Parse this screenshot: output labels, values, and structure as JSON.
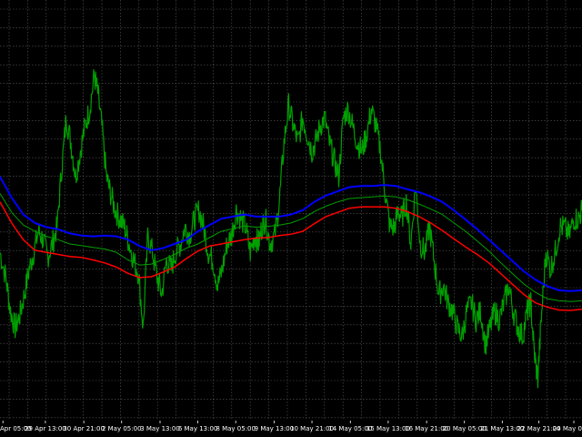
{
  "chart_data": {
    "type": "line",
    "background": "#000000",
    "grid": true,
    "grid_color": "#5a5a5a",
    "grid_style": "dotted",
    "legend": "none",
    "xlim": [
      0,
      100
    ],
    "ylim": [
      0,
      100
    ],
    "x_tick_labels": [
      {
        "x": 0.5,
        "label": "Apr 05:00"
      },
      {
        "x": 7.8,
        "label": "29 Apr 13:00"
      },
      {
        "x": 14.4,
        "label": "30 Apr 21:00"
      },
      {
        "x": 20.9,
        "label": "2 May 05:00"
      },
      {
        "x": 27.5,
        "label": "3 May 13:00"
      },
      {
        "x": 34.0,
        "label": "6 May 13:00"
      },
      {
        "x": 40.5,
        "label": "8 May 05:00"
      },
      {
        "x": 47.1,
        "label": "9 May 13:00"
      },
      {
        "x": 53.6,
        "label": "10 May 21:00"
      },
      {
        "x": 60.2,
        "label": "14 May 05:00"
      },
      {
        "x": 66.7,
        "label": "15 May 13:00"
      },
      {
        "x": 73.3,
        "label": "16 May 21:00"
      },
      {
        "x": 79.8,
        "label": "20 May 05:00"
      },
      {
        "x": 86.3,
        "label": "21 May 13:00"
      },
      {
        "x": 92.6,
        "label": "22 May 21:00"
      },
      {
        "x": 98.6,
        "label": "24 May 0"
      }
    ],
    "series": [
      {
        "color": "#00a000",
        "width": 1.2,
        "noise": true,
        "x": [
          0,
          1,
          1.8,
          2.6,
          3.4,
          4.2,
          5,
          5.8,
          6.6,
          7.4,
          8.2,
          9,
          9.8,
          10.6,
          11.4,
          12.2,
          13,
          13.8,
          14.6,
          15.4,
          16.2,
          16.8,
          17.5,
          18.3,
          19,
          19.8,
          20.6,
          21.4,
          22.2,
          23,
          23.8,
          24.6,
          25.4,
          26.2,
          27,
          27.8,
          28.6,
          29.4,
          30.2,
          31,
          31.8,
          32.6,
          33.4,
          34.2,
          35,
          35.8,
          36.6,
          37.4,
          38.2,
          39,
          39.8,
          40.6,
          41.4,
          42.2,
          43,
          43.8,
          44.4,
          45,
          45.6,
          46.4,
          47.2,
          48,
          48.8,
          49.6,
          50.4,
          51.2,
          52,
          52.8,
          53.6,
          54.2,
          55,
          55.8,
          56.6,
          57.4,
          58.2,
          59,
          59.8,
          60.6,
          61.4,
          62.2,
          63,
          63.8,
          64.6,
          65.4,
          66.2,
          67,
          67.8,
          68.4,
          69,
          69.8,
          70.6,
          71.4,
          72.2,
          73,
          73.8,
          74.6,
          75.4,
          76.2,
          77,
          77.8,
          78.6,
          79.4,
          80.2,
          81,
          81.8,
          82.6,
          83.4,
          84.2,
          85,
          85.8,
          86.6,
          87.4,
          88.2,
          89,
          89.8,
          90.6,
          91.2,
          91.8,
          92.4,
          93,
          93.8,
          94.6,
          95.4,
          96.2,
          97,
          97.8,
          98.6,
          99.4,
          100
        ],
        "y": [
          40,
          34,
          26,
          22,
          25,
          30,
          36,
          40,
          45,
          43,
          39,
          42,
          46,
          60,
          72,
          66,
          58,
          64,
          70,
          74,
          82,
          78,
          70,
          58,
          54,
          50,
          48,
          46,
          42,
          38,
          35,
          22,
          44,
          40,
          34,
          30,
          38,
          36,
          40,
          42,
          46,
          44,
          48,
          50,
          46,
          40,
          38,
          32,
          36,
          42,
          44,
          50,
          48,
          46,
          40,
          44,
          42,
          46,
          48,
          42,
          44,
          52,
          66,
          75,
          70,
          66,
          72,
          68,
          64,
          66,
          70,
          72,
          66,
          62,
          58,
          72,
          74,
          70,
          66,
          64,
          68,
          74,
          70,
          64,
          54,
          46,
          46,
          50,
          48,
          52,
          42,
          56,
          42,
          40,
          46,
          38,
          30,
          32,
          28,
          26,
          22,
          20,
          26,
          28,
          24,
          26,
          18,
          22,
          26,
          24,
          28,
          32,
          26,
          22,
          20,
          26,
          28,
          16,
          10,
          24,
          40,
          36,
          40,
          46,
          46,
          44,
          48,
          48,
          50
        ]
      },
      {
        "color": "#0000ff",
        "width": 2,
        "x": [
          0,
          2,
          4,
          6,
          8,
          10,
          12,
          14,
          16,
          18,
          20,
          22,
          24,
          26,
          28,
          30,
          32,
          34,
          36,
          38,
          40,
          42,
          44,
          46,
          48,
          50,
          52,
          54,
          56,
          58,
          60,
          62,
          64,
          66,
          68,
          70,
          72,
          74,
          76,
          78,
          80,
          82,
          84,
          86,
          88,
          90,
          92,
          94,
          96,
          98,
          100
        ],
        "y": [
          58,
          53,
          49,
          47,
          46,
          45.5,
          44.5,
          44,
          43.8,
          44,
          43.8,
          43,
          41.5,
          40.5,
          41,
          42,
          43,
          45,
          46.5,
          48,
          48.5,
          49,
          48.5,
          48.5,
          48.5,
          49,
          50,
          52,
          53.5,
          54.5,
          55.5,
          55.8,
          55.8,
          56,
          55.8,
          55,
          54.3,
          53.3,
          52,
          50,
          47.8,
          45.5,
          43,
          40.5,
          38,
          35.5,
          33.5,
          32,
          31,
          30.8,
          31
        ]
      },
      {
        "color": "#00a000",
        "width": 1,
        "x": [
          0,
          2,
          4,
          6,
          8,
          10,
          12,
          14,
          16,
          18,
          20,
          22,
          24,
          26,
          28,
          30,
          32,
          34,
          36,
          38,
          40,
          42,
          44,
          46,
          48,
          50,
          52,
          54,
          56,
          58,
          60,
          62,
          64,
          66,
          68,
          70,
          72,
          74,
          76,
          78,
          80,
          82,
          84,
          86,
          88,
          90,
          92,
          94,
          96,
          98,
          100
        ],
        "y": [
          54,
          49.5,
          46.5,
          45,
          43.8,
          43,
          42,
          41.6,
          41.2,
          40.8,
          40,
          38.2,
          37,
          37.2,
          38.3,
          39.5,
          41,
          42,
          43.5,
          45,
          45.6,
          46.3,
          46,
          46.2,
          46.5,
          47,
          48,
          49.7,
          51,
          52,
          52.8,
          53,
          53.2,
          53.4,
          53.2,
          52.5,
          51.5,
          50.3,
          49,
          47,
          45,
          42.7,
          40.3,
          37.6,
          35,
          32.5,
          30.5,
          29,
          28.5,
          28.3,
          28.5
        ]
      },
      {
        "color": "#ff0000",
        "width": 1.5,
        "x": [
          0,
          2,
          4,
          6,
          8,
          10,
          12,
          14,
          16,
          18,
          20,
          22,
          24,
          26,
          28,
          30,
          32,
          34,
          36,
          38,
          40,
          42,
          44,
          46,
          48,
          50,
          52,
          54,
          56,
          58,
          60,
          62,
          64,
          66,
          68,
          70,
          72,
          74,
          76,
          78,
          80,
          82,
          84,
          86,
          88,
          90,
          92,
          94,
          96,
          98,
          100
        ],
        "y": [
          52,
          47,
          43,
          40.5,
          40,
          39.5,
          39,
          38.8,
          38.2,
          37.5,
          36.5,
          35,
          34,
          34.2,
          35.3,
          36.5,
          38.5,
          40.3,
          41.5,
          42,
          42.5,
          43,
          43.4,
          43.5,
          44,
          44.3,
          45,
          46.8,
          48.5,
          49.5,
          50.5,
          50.8,
          50.8,
          50.8,
          50.5,
          49.7,
          48.5,
          47,
          45.2,
          43.2,
          41.3,
          39.5,
          37.5,
          35,
          32.5,
          30,
          28,
          27,
          26.3,
          26.2,
          26.5
        ]
      }
    ]
  }
}
